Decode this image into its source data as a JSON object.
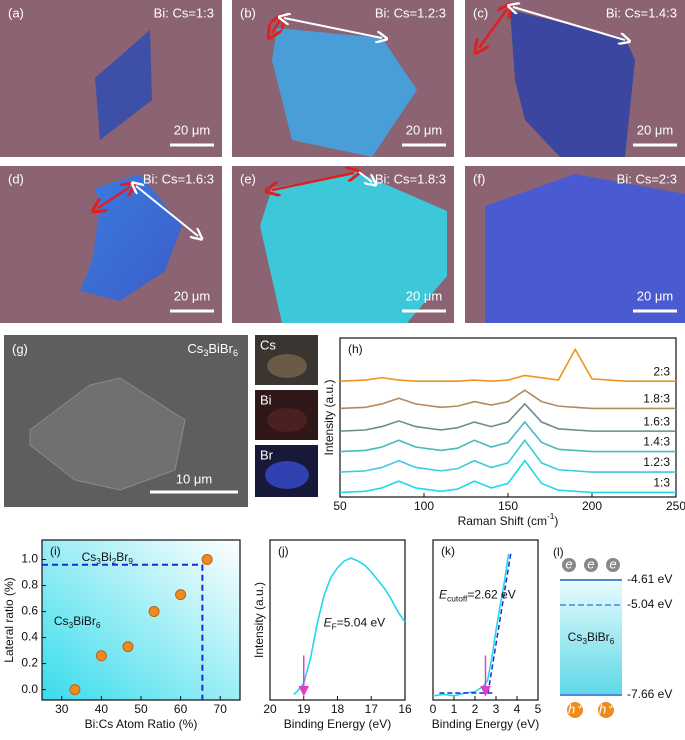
{
  "micrographs": [
    {
      "label": "(a)",
      "ratio": "Bi: Cs=1:3",
      "scale_bar": "20 μm"
    },
    {
      "label": "(b)",
      "ratio": "Bi: Cs=1.2:3",
      "scale_bar": "20 μm"
    },
    {
      "label": "(c)",
      "ratio": "Bi: Cs=1.4:3",
      "scale_bar": "20 μm"
    },
    {
      "label": "(d)",
      "ratio": "Bi: Cs=1.6:3",
      "scale_bar": "20 μm"
    },
    {
      "label": "(e)",
      "ratio": "Bi: Cs=1.8:3",
      "scale_bar": "20 μm"
    },
    {
      "label": "(f)",
      "ratio": "Bi: Cs=2:3",
      "scale_bar": "20 μm"
    }
  ],
  "sem": {
    "label": "(g)",
    "compound": "Cs3BiBr6",
    "scale_bar": "10 μm",
    "eds_maps": [
      "Cs",
      "Bi",
      "Br"
    ]
  },
  "chart_data": [
    {
      "type": "line",
      "label": "(h)",
      "x_label": "Raman Shift (cm-1)",
      "y_label": "Intensity (a.u.)",
      "x": [
        50,
        65,
        75,
        85,
        95,
        110,
        120,
        130,
        140,
        150,
        160,
        170,
        180,
        190,
        200,
        220,
        250
      ],
      "xlim": [
        50,
        250
      ],
      "xticks": [
        50,
        100,
        150,
        200,
        250
      ],
      "ylim": [
        0,
        7
      ],
      "series": [
        {
          "name": "2:3",
          "color": "#f0921e",
          "values": [
            5.1,
            5.15,
            5.25,
            5.15,
            5.1,
            5.1,
            5.1,
            5.15,
            5.1,
            5.15,
            5.35,
            5.25,
            5.15,
            6.5,
            5.2,
            5.1,
            5.1
          ]
        },
        {
          "name": "1.8:3",
          "color": "#b58a5c",
          "values": [
            3.9,
            3.95,
            4.1,
            4.35,
            4.1,
            3.95,
            4.0,
            4.2,
            4.05,
            4.2,
            4.7,
            4.2,
            4.0,
            3.95,
            3.9,
            3.9,
            3.9
          ]
        },
        {
          "name": "1.6:3",
          "color": "#6b8a88",
          "values": [
            2.9,
            2.95,
            3.1,
            3.35,
            3.1,
            2.95,
            3.05,
            3.3,
            3.1,
            3.3,
            4.1,
            3.3,
            3.0,
            2.95,
            2.9,
            2.9,
            2.9
          ]
        },
        {
          "name": "1.4:3",
          "color": "#4ab8c0",
          "values": [
            2.0,
            2.05,
            2.2,
            2.5,
            2.2,
            2.05,
            2.15,
            2.5,
            2.2,
            2.4,
            3.3,
            2.4,
            2.1,
            2.05,
            2.0,
            2.0,
            2.0
          ]
        },
        {
          "name": "1.2:3",
          "color": "#3cccdc",
          "values": [
            1.1,
            1.15,
            1.3,
            1.6,
            1.3,
            1.15,
            1.25,
            1.6,
            1.3,
            1.5,
            2.5,
            1.5,
            1.2,
            1.15,
            1.1,
            1.1,
            1.1
          ]
        },
        {
          "name": "1:3",
          "color": "#22d8ec",
          "values": [
            0.2,
            0.25,
            0.4,
            0.7,
            0.4,
            0.25,
            0.35,
            0.7,
            0.4,
            0.6,
            1.6,
            0.6,
            0.3,
            0.25,
            0.2,
            0.2,
            0.2
          ]
        }
      ]
    },
    {
      "type": "scatter",
      "label": "(i)",
      "x_label": "Bi:Cs Atom Ratio (%)",
      "y_label": "Lateral ratio (%)",
      "x": [
        33.3,
        40,
        46.7,
        53.3,
        60,
        66.7
      ],
      "values": [
        0,
        0.26,
        0.33,
        0.6,
        0.73,
        1.0
      ],
      "color": "#f08a1e",
      "xlim": [
        25,
        75
      ],
      "xticks": [
        30,
        40,
        50,
        60,
        70
      ],
      "ylim": [
        -0.08,
        1.15
      ],
      "yticks": [
        {
          "value": 0,
          "label": "0.0"
        },
        0.2,
        0.4,
        0.6,
        0.8,
        {
          "value": 1,
          "label": "1.0"
        }
      ],
      "boundary": {
        "x": 65.5,
        "y": 0.96
      },
      "regions": [
        "Cs3Bi2Br9",
        "Cs3BiBr6"
      ]
    },
    {
      "type": "line",
      "label": "(j)",
      "x_label": "Binding Energy (eV)",
      "y_label": "Intensity (a.u.)",
      "x": [
        19.3,
        19.2,
        19.0,
        18.8,
        18.6,
        18.4,
        18.2,
        18.0,
        17.8,
        17.6,
        17.4,
        17.2,
        17.0,
        16.8,
        16.6,
        16.4,
        16.2,
        16.0
      ],
      "series": [
        {
          "name": null,
          "color": "#22d8ec",
          "values": [
            0.04,
            0.06,
            0.12,
            0.3,
            0.55,
            0.75,
            0.88,
            0.95,
            1.0,
            1.02,
            1.0,
            0.97,
            0.92,
            0.86,
            0.8,
            0.72,
            0.63,
            0.56
          ]
        }
      ],
      "xlim": [
        20,
        16
      ],
      "xticks": [
        20,
        19,
        18,
        17,
        16
      ],
      "ylim": [
        0,
        1.15
      ],
      "annotation": "EF=5.04 eV",
      "arrow_x": 19.0
    },
    {
      "type": "line",
      "label": "(k)",
      "x_label": "Binding Energy (eV)",
      "x": [
        0,
        0.5,
        1,
        1.5,
        2,
        2.2,
        2.4,
        2.6,
        2.8,
        3.0,
        3.2,
        3.4,
        3.6
      ],
      "series": [
        {
          "name": null,
          "color": "#22d8ec",
          "values": [
            0.03,
            0.04,
            0.03,
            0.05,
            0.06,
            0.08,
            0.1,
            0.14,
            0.3,
            0.5,
            0.68,
            0.85,
            1.05
          ]
        }
      ],
      "xlim": [
        0,
        5
      ],
      "xticks": [
        0,
        1,
        2,
        3,
        4,
        5
      ],
      "ylim": [
        0,
        1.15
      ],
      "annotation": "Ecutoff=2.62 eV",
      "arrow_x": 2.5,
      "fit": {
        "x": [
          2.62,
          3.7
        ],
        "values": [
          0.05,
          1.05
        ]
      }
    }
  ],
  "band_diagram": {
    "label": "(l)",
    "compound": "Cs3BiBr6",
    "levels": [
      "-4.61 eV",
      "-5.04 eV",
      "-7.66 eV"
    ],
    "electron": "e",
    "hole": "h⁺"
  }
}
